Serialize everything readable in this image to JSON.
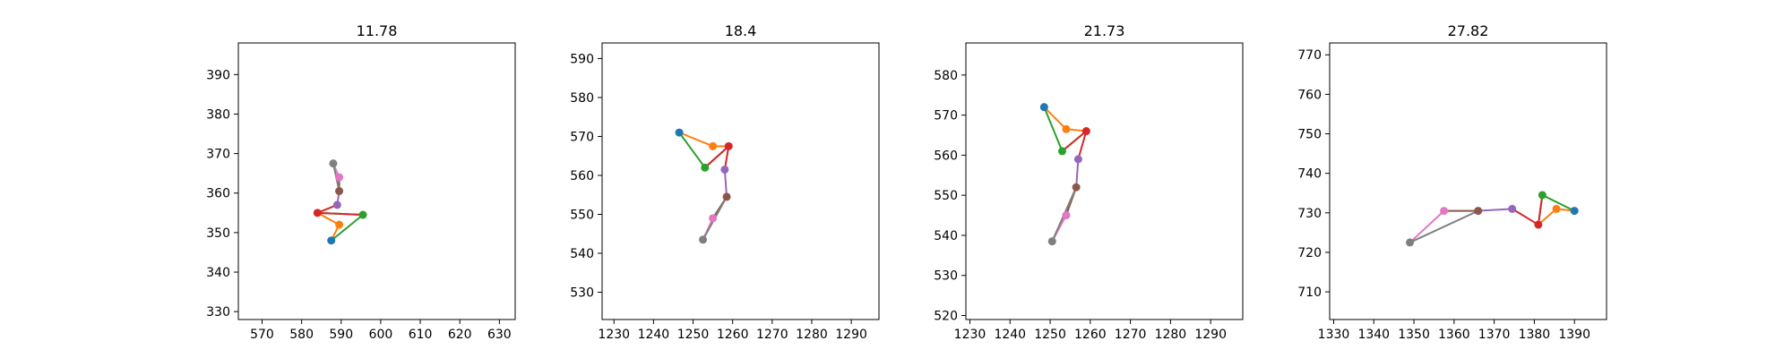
{
  "chart_data": [
    {
      "type": "line",
      "title": "11.78",
      "xlim": [
        564,
        634
      ],
      "ylim": [
        328,
        398
      ],
      "xticks": [
        570,
        580,
        590,
        600,
        610,
        620,
        630
      ],
      "yticks": [
        330,
        340,
        350,
        360,
        370,
        380,
        390
      ],
      "points": {
        "blue": [
          587.5,
          348
        ],
        "orange": [
          589.5,
          352
        ],
        "green": [
          595.5,
          354.5
        ],
        "red": [
          584,
          355
        ],
        "purple": [
          589,
          357
        ],
        "brown": [
          589.5,
          360.5
        ],
        "pink": [
          589.5,
          364
        ],
        "gray": [
          588,
          367.5
        ]
      }
    },
    {
      "type": "line",
      "title": "18.4",
      "xlim": [
        1227,
        1297
      ],
      "ylim": [
        523,
        594
      ],
      "xticks": [
        1230,
        1240,
        1250,
        1260,
        1270,
        1280,
        1290
      ],
      "yticks": [
        530,
        540,
        550,
        560,
        570,
        580,
        590
      ],
      "points": {
        "blue": [
          1246.5,
          571
        ],
        "orange": [
          1255,
          567.5
        ],
        "green": [
          1253,
          562
        ],
        "red": [
          1259,
          567.5
        ],
        "purple": [
          1258,
          561.5
        ],
        "brown": [
          1258.5,
          554.5
        ],
        "pink": [
          1255,
          549
        ],
        "gray": [
          1252.5,
          543.5
        ]
      }
    },
    {
      "type": "line",
      "title": "21.73",
      "xlim": [
        1229,
        1298
      ],
      "ylim": [
        519,
        588
      ],
      "xticks": [
        1230,
        1240,
        1250,
        1260,
        1270,
        1280,
        1290
      ],
      "yticks": [
        520,
        530,
        540,
        550,
        560,
        570,
        580
      ],
      "points": {
        "blue": [
          1248.5,
          572
        ],
        "orange": [
          1254,
          566.5
        ],
        "green": [
          1253,
          561
        ],
        "red": [
          1259,
          566
        ],
        "purple": [
          1257,
          559
        ],
        "brown": [
          1256.5,
          552
        ],
        "pink": [
          1254,
          545
        ],
        "gray": [
          1250.5,
          538.5
        ]
      }
    },
    {
      "type": "line",
      "title": "27.82",
      "xlim": [
        1329,
        1398
      ],
      "ylim": [
        703,
        773
      ],
      "xticks": [
        1330,
        1340,
        1350,
        1360,
        1370,
        1380,
        1390
      ],
      "yticks": [
        710,
        720,
        730,
        740,
        750,
        760,
        770
      ],
      "points": {
        "blue": [
          1390,
          730.5
        ],
        "orange": [
          1385.5,
          731
        ],
        "green": [
          1382,
          734.5
        ],
        "red": [
          1381,
          727
        ],
        "purple": [
          1374.5,
          731
        ],
        "brown": [
          1366,
          730.5
        ],
        "pink": [
          1357.5,
          730.5
        ],
        "gray": [
          1349,
          722.5
        ]
      }
    }
  ],
  "colors": {
    "blue": "#1f77b4",
    "orange": "#ff7f0e",
    "green": "#2ca02c",
    "red": "#d62728",
    "purple": "#9467bd",
    "brown": "#8c564b",
    "pink": "#e377c2",
    "gray": "#7f7f7f"
  },
  "segments": [
    [
      "blue",
      "orange",
      "orange"
    ],
    [
      "orange",
      "red",
      "orange"
    ],
    [
      "blue",
      "green",
      "green"
    ],
    [
      "green",
      "red",
      "green"
    ],
    [
      "red",
      "purple",
      "red"
    ],
    [
      "red",
      "green",
      "red"
    ],
    [
      "purple",
      "brown",
      "purple"
    ],
    [
      "brown",
      "pink",
      "brown"
    ],
    [
      "pink",
      "gray",
      "pink"
    ],
    [
      "brown",
      "gray",
      "gray"
    ]
  ],
  "point_order": [
    "blue",
    "orange",
    "green",
    "red",
    "purple",
    "brown",
    "pink",
    "gray"
  ]
}
